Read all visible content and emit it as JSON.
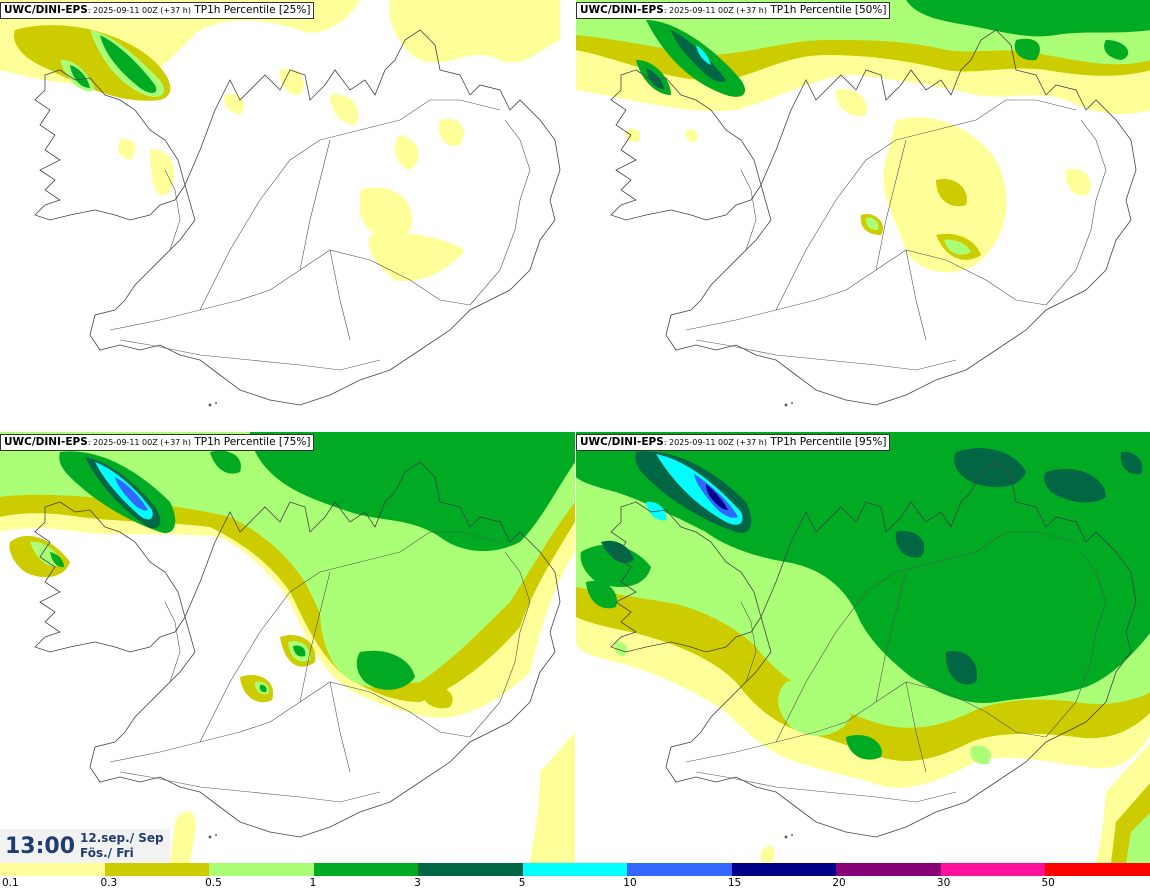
{
  "panels": [
    {
      "model": "UWC/DINI-EPS",
      "run": ": 2025-09-11 00Z (+37 h)",
      "field": " TP1h Percentile [25%]"
    },
    {
      "model": "UWC/DINI-EPS",
      "run": ": 2025-09-11 00Z (+37 h)",
      "field": " TP1h Percentile [50%]"
    },
    {
      "model": "UWC/DINI-EPS",
      "run": ": 2025-09-11 00Z (+37 h)",
      "field": " TP1h Percentile [75%]"
    },
    {
      "model": "UWC/DINI-EPS",
      "run": ": 2025-09-11 00Z (+37 h)",
      "field": " TP1h Percentile [95%]"
    }
  ],
  "validtime": {
    "time": "13:00",
    "date_line1": "12.sep./ Sep",
    "date_line2": "Fös./ Fri"
  },
  "legend": {
    "labels": [
      "0.1",
      "0.3",
      "0.5",
      "1",
      "3",
      "5",
      "10",
      "15",
      "20",
      "30",
      "50"
    ],
    "colors": [
      "#ffff99",
      "#cccc00",
      "#aaff77",
      "#00aa22",
      "#006644",
      "#00ffff",
      "#3366ff",
      "#000088",
      "#880077",
      "#ff1199",
      "#ff0000"
    ]
  }
}
